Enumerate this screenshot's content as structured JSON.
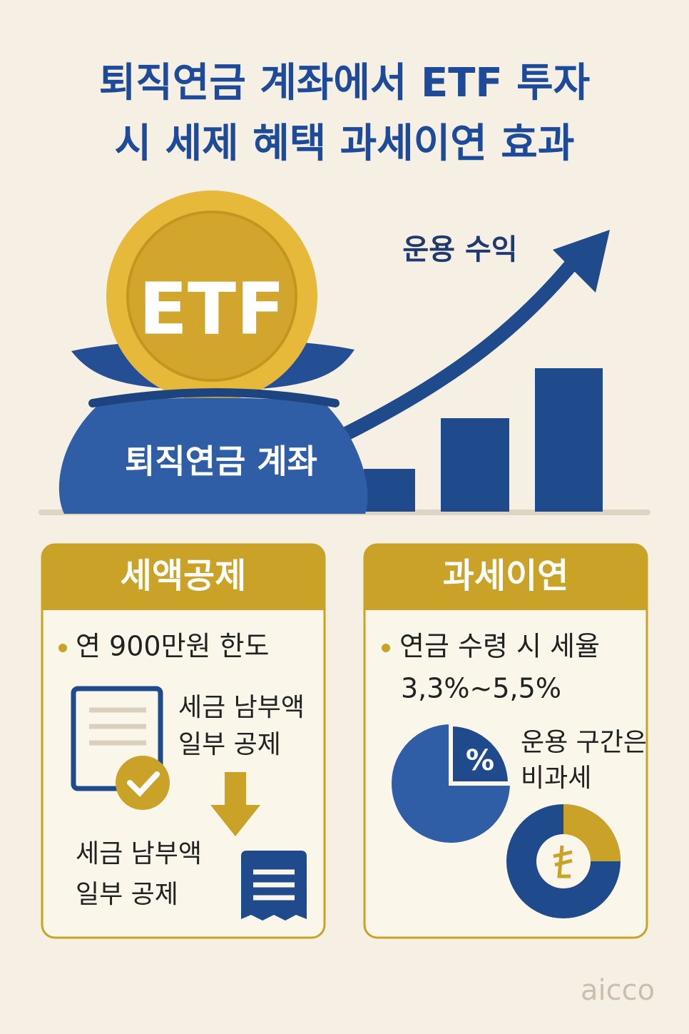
{
  "header": {
    "title_lines": [
      "퇴직연금 계좌에서 ETF 투자",
      "시 세제 혜택 과세이연 효과"
    ]
  },
  "illustration": {
    "growth_label": "운용 수익",
    "coin_label": "ETF",
    "bag_label": "퇴직연금 계좌"
  },
  "cards": [
    {
      "title": "세액공제",
      "bullet": "연 900만원 한도",
      "note_top": [
        "세금 남부액",
        "일부 공제"
      ],
      "note_bottom": [
        "세금 남부액",
        "일부 공제"
      ]
    },
    {
      "title": "과세이연",
      "bullet": [
        "연금 수령 시 세율",
        "3,3%~5,5%"
      ],
      "pie_symbol": "%",
      "note": [
        "운용 구간은",
        "비과세"
      ]
    }
  ],
  "footer": {
    "logo": "aicco"
  }
}
